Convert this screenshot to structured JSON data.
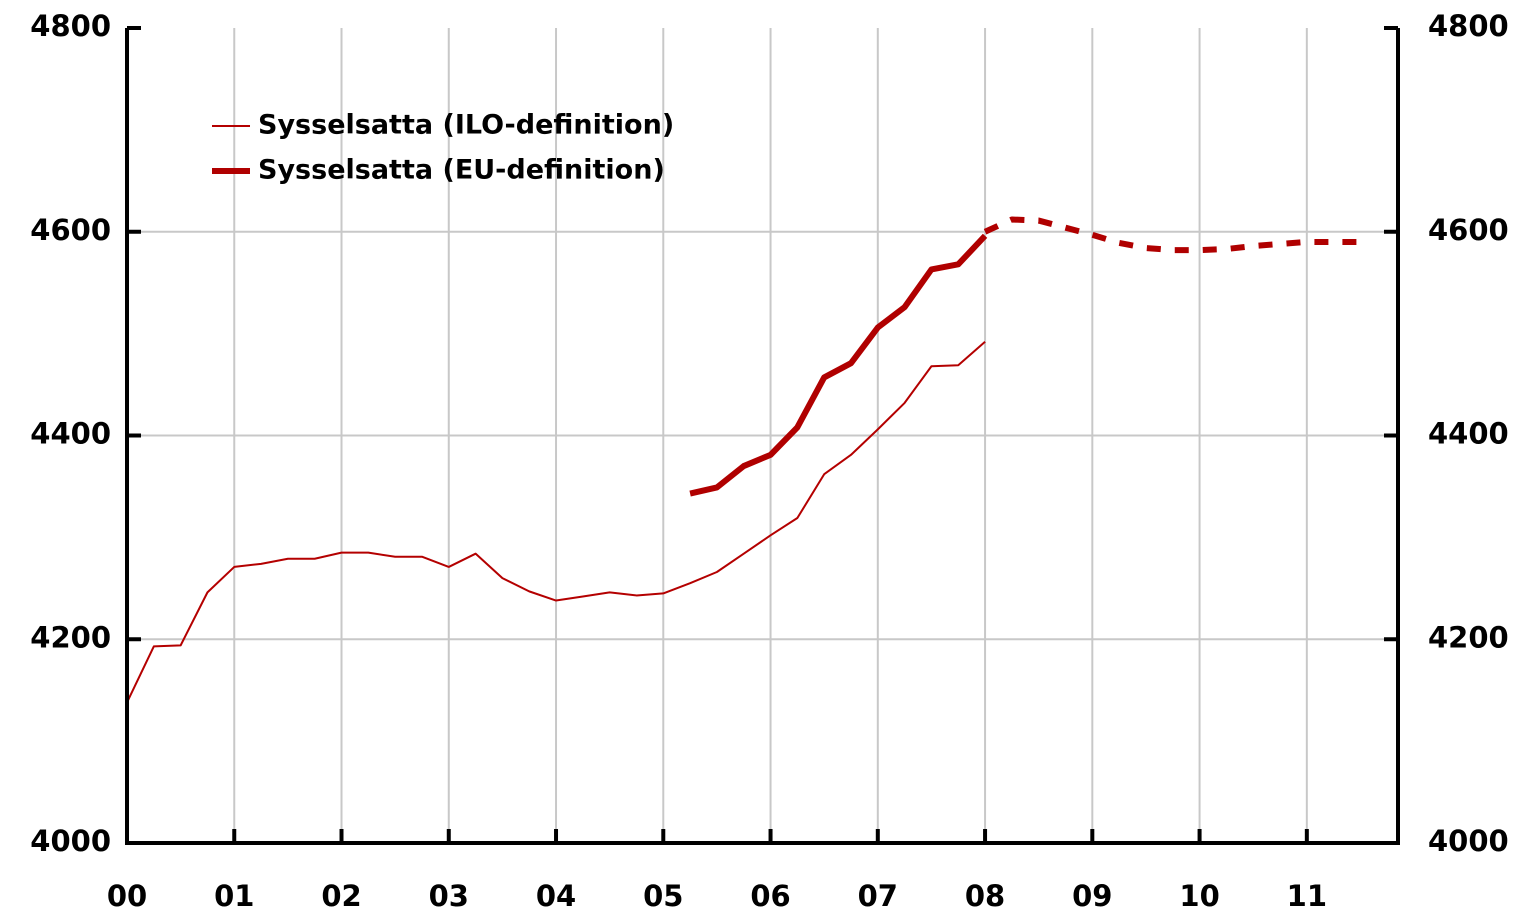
{
  "chart_data": {
    "type": "line",
    "xticks": [
      {
        "value": 0,
        "label": "00"
      },
      {
        "value": 1,
        "label": "01"
      },
      {
        "value": 2,
        "label": "02"
      },
      {
        "value": 3,
        "label": "03"
      },
      {
        "value": 4,
        "label": "04"
      },
      {
        "value": 5,
        "label": "05"
      },
      {
        "value": 6,
        "label": "06"
      },
      {
        "value": 7,
        "label": "07"
      },
      {
        "value": 8,
        "label": "08"
      },
      {
        "value": 9,
        "label": "09"
      },
      {
        "value": 10,
        "label": "10"
      },
      {
        "value": 11,
        "label": "11"
      }
    ],
    "xlim": [
      0,
      11.85
    ],
    "ylim": [
      4000,
      4800
    ],
    "yticks": [
      4000,
      4200,
      4400,
      4600,
      4800
    ],
    "y2lim": [
      4000,
      4800
    ],
    "y2ticks": [
      4000,
      4200,
      4400,
      4600,
      4800
    ],
    "grid": true,
    "legend": "upper left",
    "series": [
      {
        "name": "Sysselsatta (ILO-definition)",
        "color": "#b40000",
        "width": 2,
        "x": [
          0,
          0.25,
          0.5,
          0.75,
          1,
          1.25,
          1.5,
          1.75,
          2,
          2.25,
          2.5,
          2.75,
          3,
          3.25,
          3.5,
          3.75,
          4,
          4.25,
          4.5,
          4.75,
          5,
          5.25,
          5.5,
          5.75,
          6,
          6.25,
          6.5,
          6.75,
          7,
          7.25,
          7.5,
          7.75,
          8
        ],
        "values": [
          4138,
          4193,
          4194,
          4246,
          4271,
          4274,
          4279,
          4279,
          4285,
          4285,
          4281,
          4281,
          4271,
          4284,
          4260,
          4247,
          4238,
          4242,
          4246,
          4243,
          4245,
          4255,
          4266,
          4284,
          4302,
          4319,
          4362,
          4381,
          4406,
          4432,
          4468,
          4469,
          4492
        ]
      },
      {
        "name": "Sysselsatta (EU-definition)",
        "color": "#b00000",
        "width": 6,
        "x": [
          5.25,
          5.5,
          5.75,
          6,
          6.25,
          6.5,
          6.75,
          7,
          7.25,
          7.5,
          7.75,
          8
        ],
        "values": [
          4343,
          4349,
          4370,
          4381,
          4408,
          4457,
          4471,
          4506,
          4526,
          4563,
          4568,
          4596
        ]
      },
      {
        "color": "#b00000",
        "width": 6,
        "dashed": true,
        "x": [
          8,
          8.25,
          8.5,
          8.75,
          9,
          9.25,
          9.5,
          9.75,
          10,
          10.25,
          10.5,
          10.75,
          11,
          11.25,
          11.5
        ],
        "values": [
          4600,
          4612,
          4611,
          4604,
          4597,
          4589,
          4584,
          4582,
          4582,
          4583,
          4586,
          4588,
          4590,
          4590,
          4590
        ]
      }
    ]
  }
}
